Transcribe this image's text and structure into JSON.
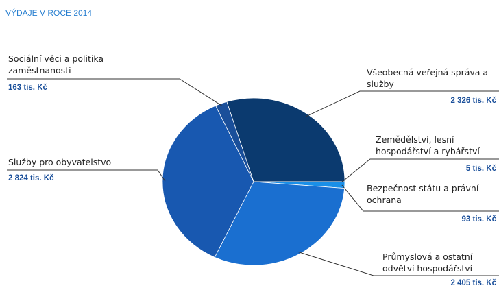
{
  "chart_data": {
    "type": "pie",
    "title": "VÝDAJE V ROCE 2014",
    "categories": [
      "Všeobecná veřejná správa a služby",
      "Zemědělství, lesní hospodářství a rybářství",
      "Bezpečnost státu a právní ochrana",
      "Průmyslová a ostatní odvětví hospodářství",
      "Služby pro obyvatelstvo",
      "Sociální věci a politika zaměstnanosti"
    ],
    "values": [
      2326,
      5,
      93,
      2405,
      2824,
      163
    ],
    "value_labels": [
      "2 326 tis. Kč",
      "5 tis. Kč",
      "93 tis. Kč",
      "2 405 tis. Kč",
      "2 824 tis. Kč",
      "163 tis. Kč"
    ],
    "colors": [
      "#0b3a6f",
      "#1460b8",
      "#1a8fe8",
      "#1a6fd0",
      "#1858b0",
      "#1a4f9a"
    ]
  }
}
